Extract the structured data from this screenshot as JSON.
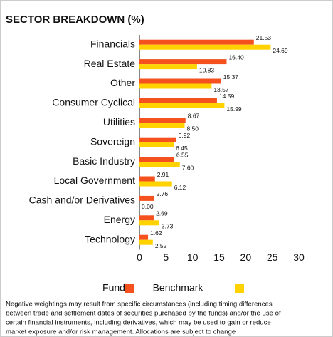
{
  "chart_data": {
    "type": "bar",
    "orientation": "horizontal",
    "title": "SECTOR BREAKDOWN (%)",
    "categories": [
      "Financials",
      "Real Estate",
      "Other",
      "Consumer Cyclical",
      "Utilities",
      "Sovereign",
      "Basic Industry",
      "Local Government",
      "Cash and/or Derivatives",
      "Energy",
      "Technology"
    ],
    "series": [
      {
        "name": "Fund",
        "color": "#f4511e",
        "values": [
          21.53,
          16.4,
          15.37,
          14.59,
          8.67,
          6.92,
          6.55,
          2.91,
          2.76,
          2.69,
          1.62
        ],
        "value_labels": [
          "21.53",
          "16.40",
          "15.37",
          "14.59",
          "8.67",
          "6.92",
          "6.55",
          "2.91",
          "2.76",
          "2.69",
          "1.62"
        ]
      },
      {
        "name": "Benchmark",
        "color": "#ffd200",
        "values": [
          24.69,
          10.83,
          13.57,
          15.99,
          8.5,
          6.45,
          7.6,
          6.12,
          0,
          3.73,
          2.52
        ],
        "value_labels": [
          "24.69",
          "10.83",
          "13.57",
          "15.99",
          "8.50",
          "6.45",
          "7.60",
          "6.12",
          "0.00",
          "3.73",
          "2.52"
        ]
      }
    ],
    "xlim": [
      0,
      30
    ],
    "xticks": [
      0,
      5,
      10,
      15,
      20,
      25,
      30
    ],
    "grid": false,
    "note": [
      "Negative weightings may result from specific circumstances (including timing differences",
      "between trade and settlement dates of securities purchased by the funds) and/or the use of",
      "certain financial instruments, including derivatives, which may be used to gain or reduce",
      "market exposure and/or risk management. Allocations are subject to change"
    ]
  }
}
